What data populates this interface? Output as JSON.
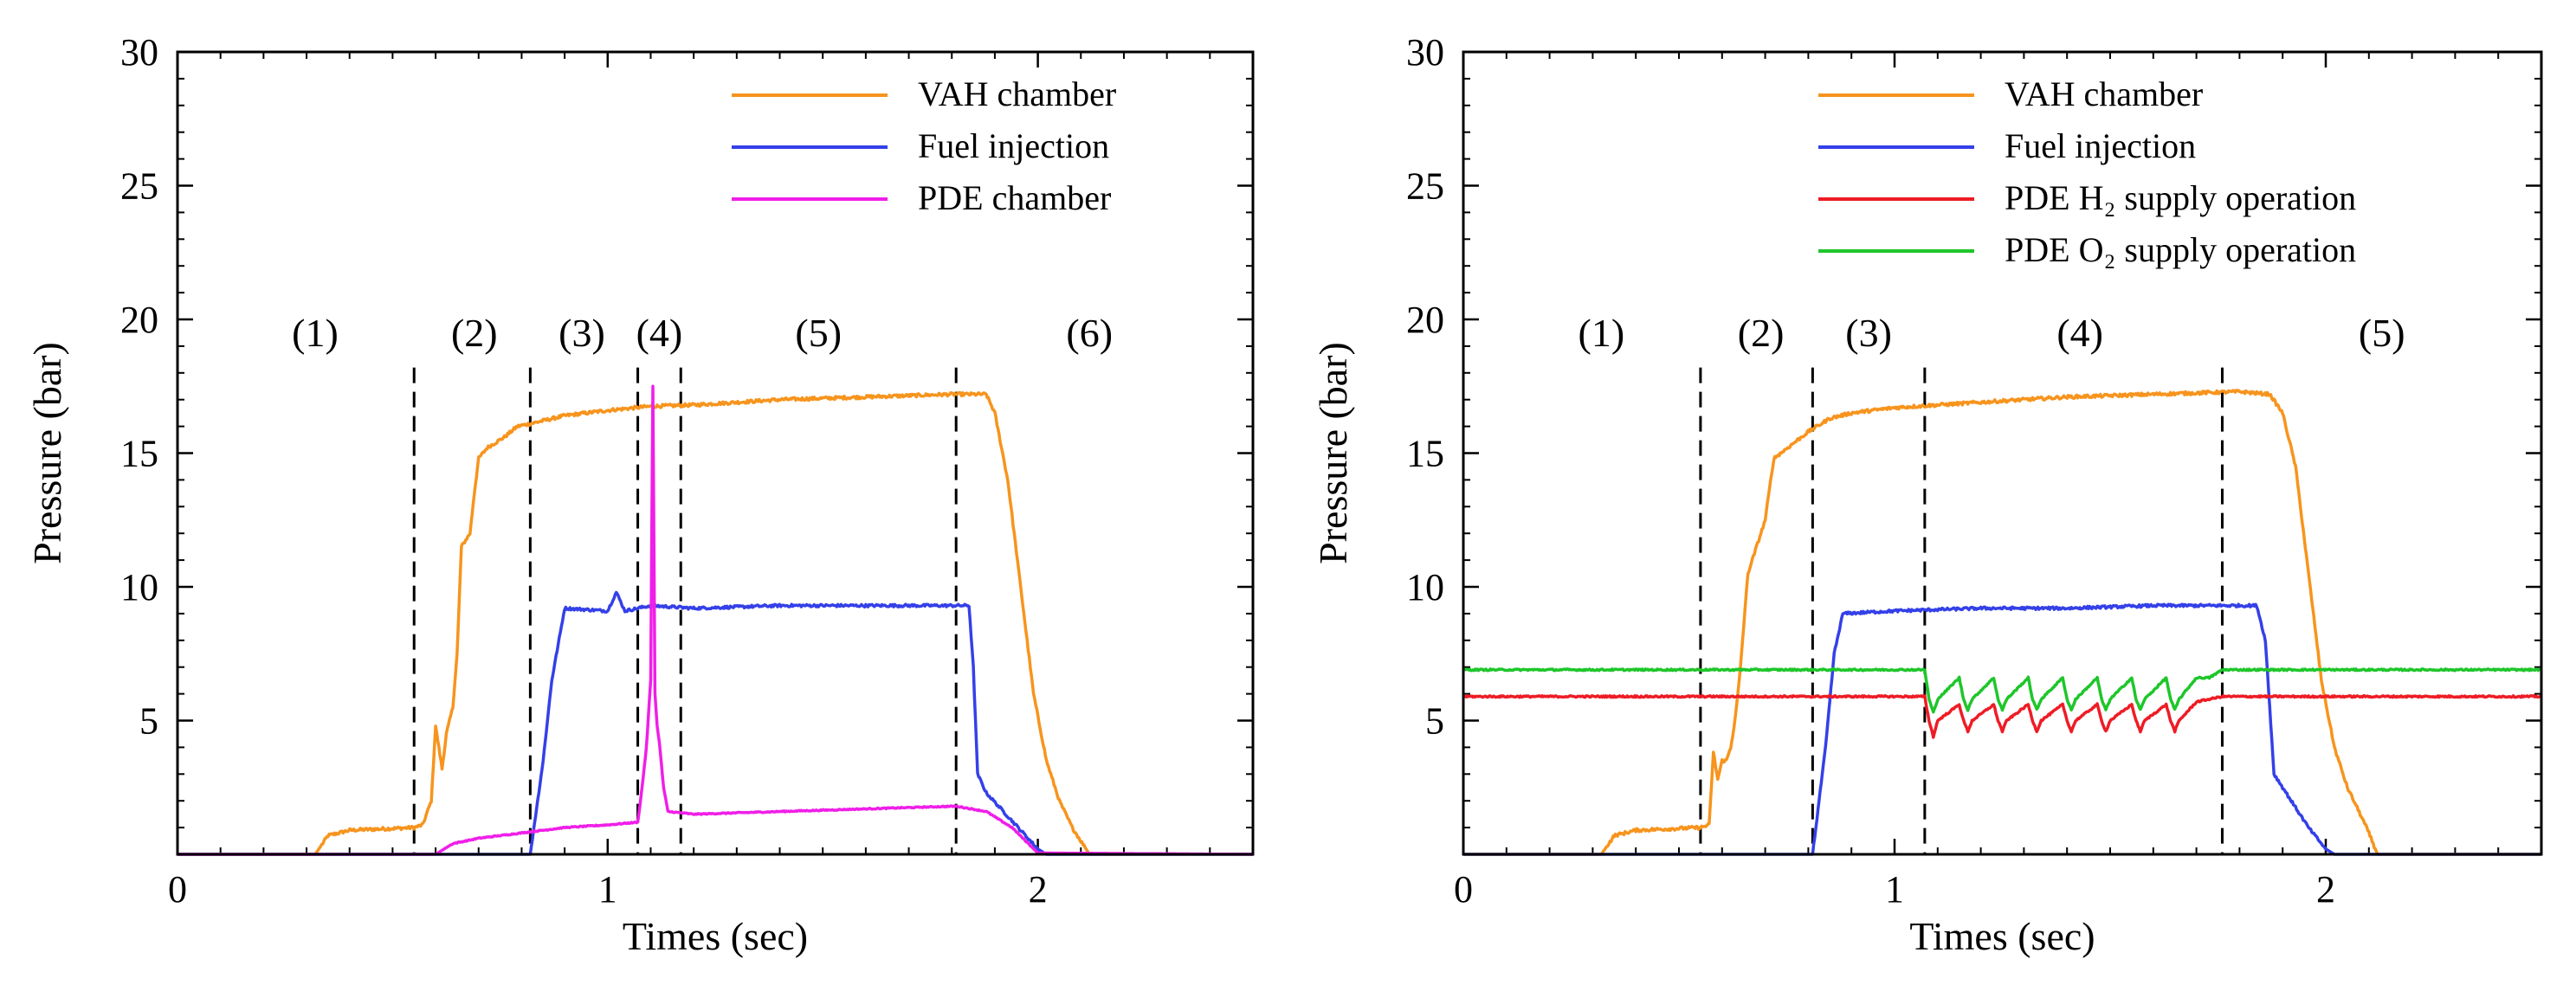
{
  "chart_data": [
    {
      "type": "line",
      "xlabel": "Times (sec)",
      "ylabel": "Pressure (bar)",
      "xlim": [
        0,
        2.5
      ],
      "ylim": [
        0,
        30
      ],
      "xticks": [
        0,
        1,
        2
      ],
      "yticks": [
        5,
        10,
        15,
        20,
        25,
        30
      ],
      "legend_position": "top-right",
      "dividers": [
        0.55,
        0.82,
        1.07,
        1.17,
        1.81
      ],
      "phases": [
        {
          "label": "(1)",
          "x": 0.32,
          "y": 19.0
        },
        {
          "label": "(2)",
          "x": 0.69,
          "y": 19.0
        },
        {
          "label": "(3)",
          "x": 0.94,
          "y": 19.0
        },
        {
          "label": "(4)",
          "x": 1.12,
          "y": 19.0
        },
        {
          "label": "(5)",
          "x": 1.49,
          "y": 19.0
        },
        {
          "label": "(6)",
          "x": 2.12,
          "y": 19.0
        }
      ],
      "series": [
        {
          "name": "VAH chamber",
          "color": "#f7941d",
          "noise": 0.06,
          "x": [
            0,
            0.32,
            0.35,
            0.4,
            0.55,
            0.57,
            0.59,
            0.6,
            0.615,
            0.625,
            0.64,
            0.65,
            0.66,
            0.68,
            0.69,
            0.7,
            0.72,
            0.76,
            0.79,
            0.82,
            0.9,
            1.0,
            1.1,
            1.2,
            1.4,
            1.6,
            1.8,
            1.88,
            1.9,
            1.93,
            1.96,
            1.99,
            2.02,
            2.05,
            2.08,
            2.1,
            2.12,
            2.5
          ],
          "y": [
            0,
            0,
            0.7,
            0.9,
            1.0,
            1.1,
            2.0,
            4.8,
            3.2,
            4.5,
            5.5,
            7.5,
            11.5,
            12.0,
            13.5,
            14.8,
            15.2,
            15.6,
            16.0,
            16.1,
            16.4,
            16.6,
            16.75,
            16.8,
            17.0,
            17.1,
            17.2,
            17.2,
            16.5,
            14.0,
            10.0,
            6.0,
            3.5,
            2.0,
            1.0,
            0.5,
            0,
            0
          ]
        },
        {
          "name": "Fuel injection",
          "color": "#3440e8",
          "noise": 0.05,
          "x": [
            0,
            0.82,
            0.85,
            0.87,
            0.9,
            1.0,
            1.02,
            1.04,
            1.1,
            1.2,
            1.4,
            1.6,
            1.8,
            1.84,
            1.85,
            1.86,
            1.88,
            1.92,
            1.96,
            2.0,
            2.02,
            2.5
          ],
          "y": [
            0,
            0,
            3.5,
            6.5,
            9.2,
            9.1,
            9.8,
            9.1,
            9.3,
            9.2,
            9.3,
            9.3,
            9.3,
            9.3,
            7.0,
            3.0,
            2.3,
            1.6,
            0.9,
            0.2,
            0,
            0
          ]
        },
        {
          "name": "PDE chamber",
          "color": "#f01ee8",
          "noise": 0.02,
          "x": [
            0,
            0.6,
            0.64,
            0.7,
            0.8,
            0.9,
            1.0,
            1.07,
            1.08,
            1.09,
            1.1,
            1.105,
            1.11,
            1.115,
            1.12,
            1.13,
            1.14,
            1.2,
            1.4,
            1.6,
            1.81,
            1.88,
            1.94,
            2.0,
            2.5
          ],
          "y": [
            0,
            0,
            0.4,
            0.6,
            0.8,
            1.0,
            1.1,
            1.2,
            2.5,
            4.0,
            6.5,
            17.5,
            6.0,
            4.8,
            4.2,
            2.5,
            1.6,
            1.5,
            1.6,
            1.7,
            1.8,
            1.6,
            1.0,
            0.05,
            0
          ]
        }
      ]
    },
    {
      "type": "line",
      "xlabel": "Times (sec)",
      "ylabel": "Pressure (bar)",
      "xlim": [
        0,
        2.5
      ],
      "ylim": [
        0,
        30
      ],
      "xticks": [
        0,
        1,
        2
      ],
      "yticks": [
        5,
        10,
        15,
        20,
        25,
        30
      ],
      "legend_position": "top-right",
      "dividers": [
        0.55,
        0.81,
        1.07,
        1.76
      ],
      "phases": [
        {
          "label": "(1)",
          "x": 0.32,
          "y": 19.0
        },
        {
          "label": "(2)",
          "x": 0.69,
          "y": 19.0
        },
        {
          "label": "(3)",
          "x": 0.94,
          "y": 19.0
        },
        {
          "label": "(4)",
          "x": 1.43,
          "y": 19.0
        },
        {
          "label": "(5)",
          "x": 2.13,
          "y": 19.0
        }
      ],
      "series": [
        {
          "name": "VAH chamber",
          "color": "#f7941d",
          "noise": 0.06,
          "x": [
            0,
            0.32,
            0.35,
            0.4,
            0.55,
            0.57,
            0.58,
            0.59,
            0.6,
            0.61,
            0.62,
            0.63,
            0.64,
            0.65,
            0.66,
            0.68,
            0.7,
            0.72,
            0.76,
            0.8,
            0.85,
            0.9,
            1.0,
            1.2,
            1.4,
            1.6,
            1.8,
            1.87,
            1.9,
            1.93,
            1.96,
            1.99,
            2.02,
            2.05,
            2.08,
            2.1,
            2.12,
            2.5
          ],
          "y": [
            0,
            0,
            0.7,
            0.9,
            1.0,
            1.1,
            3.8,
            2.8,
            3.5,
            3.5,
            4.0,
            5.0,
            6.5,
            8.5,
            10.5,
            11.5,
            12.5,
            14.8,
            15.3,
            15.8,
            16.3,
            16.5,
            16.7,
            16.9,
            17.1,
            17.2,
            17.3,
            17.2,
            16.5,
            14.5,
            10.5,
            6.5,
            4.0,
            2.5,
            1.5,
            0.8,
            0,
            0
          ]
        },
        {
          "name": "Fuel injection",
          "color": "#3440e8",
          "noise": 0.05,
          "x": [
            0,
            0.81,
            0.84,
            0.86,
            0.88,
            1.0,
            1.2,
            1.4,
            1.6,
            1.8,
            1.84,
            1.86,
            1.88,
            1.92,
            1.96,
            2.0,
            2.02,
            2.5
          ],
          "y": [
            0,
            0,
            4.0,
            7.5,
            9.0,
            9.1,
            9.2,
            9.2,
            9.3,
            9.3,
            9.3,
            8.0,
            3.0,
            2.0,
            1.0,
            0.2,
            0,
            0
          ]
        },
        {
          "name": "PDE H₂ supply operation",
          "color": "#ee1c25",
          "noise": 0.03,
          "x": [
            0,
            1.07,
            1.08,
            1.09,
            1.1,
            1.15,
            1.16,
            1.17,
            1.18,
            1.23,
            1.24,
            1.25,
            1.26,
            1.31,
            1.32,
            1.33,
            1.34,
            1.39,
            1.4,
            1.41,
            1.42,
            1.47,
            1.48,
            1.49,
            1.5,
            1.55,
            1.56,
            1.57,
            1.58,
            1.63,
            1.64,
            1.65,
            1.66,
            1.7,
            1.76,
            2.5
          ],
          "y": [
            5.9,
            5.9,
            5.0,
            4.4,
            5.0,
            5.6,
            5.0,
            4.6,
            5.0,
            5.6,
            5.0,
            4.6,
            5.0,
            5.6,
            5.0,
            4.6,
            5.0,
            5.6,
            5.0,
            4.6,
            5.0,
            5.6,
            5.0,
            4.6,
            5.0,
            5.6,
            5.0,
            4.6,
            5.0,
            5.6,
            5.0,
            4.6,
            5.0,
            5.7,
            5.9,
            5.9
          ]
        },
        {
          "name": "PDE O₂ supply operation",
          "color": "#1ec62a",
          "noise": 0.03,
          "x": [
            0,
            1.07,
            1.08,
            1.09,
            1.1,
            1.15,
            1.16,
            1.17,
            1.18,
            1.23,
            1.24,
            1.25,
            1.26,
            1.31,
            1.32,
            1.33,
            1.34,
            1.39,
            1.4,
            1.41,
            1.42,
            1.47,
            1.48,
            1.49,
            1.5,
            1.55,
            1.56,
            1.57,
            1.58,
            1.63,
            1.64,
            1.65,
            1.66,
            1.7,
            1.73,
            1.76,
            2.5
          ],
          "y": [
            6.9,
            6.9,
            5.8,
            5.3,
            5.8,
            6.6,
            5.8,
            5.4,
            5.8,
            6.6,
            5.8,
            5.4,
            5.8,
            6.6,
            5.8,
            5.4,
            5.8,
            6.6,
            5.8,
            5.4,
            5.8,
            6.6,
            5.8,
            5.4,
            5.8,
            6.6,
            5.8,
            5.4,
            5.8,
            6.6,
            5.8,
            5.4,
            5.8,
            6.6,
            6.6,
            6.9,
            6.9
          ]
        }
      ]
    }
  ]
}
